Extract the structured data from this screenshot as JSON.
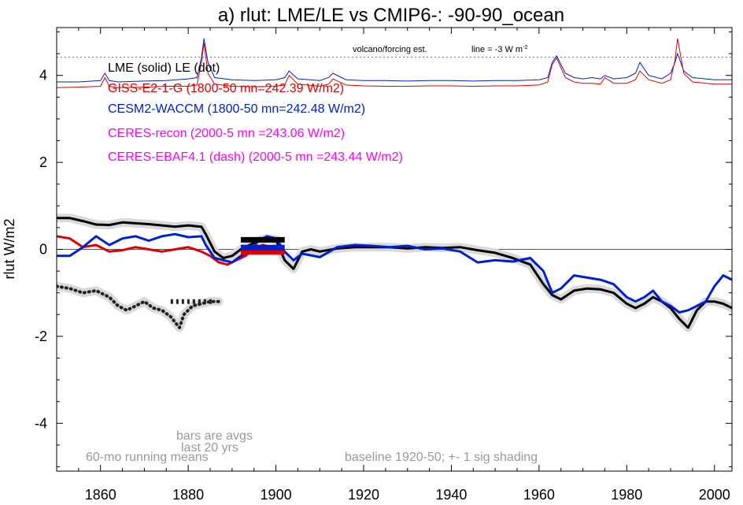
{
  "chart_data": {
    "type": "line",
    "title": "a) rlut: LME/LE vs CMIP6-: -90-90_ocean",
    "ylabel": "rlut W/m2",
    "xlabel": "",
    "xlim": [
      1850,
      2004
    ],
    "ylim": [
      -5.1,
      5.1
    ],
    "x_ticks": [
      1860,
      1880,
      1900,
      1920,
      1940,
      1960,
      1980,
      2000
    ],
    "y_ticks": [
      -4,
      -2,
      0,
      2,
      4
    ],
    "legend_position": "top-left",
    "zero_line": true,
    "legend": [
      {
        "label": "LME (solid)   LE (dot)",
        "color": "#000000"
      },
      {
        "label": "GISS-E2-1-G (1800-50 mn=242.39 W/m2)",
        "color": "#e00000"
      },
      {
        "label": "CESM2-WACCM (1800-50 mn=242.48 W/m2)",
        "color": "#0020d0"
      },
      {
        "label": "CERES-recon (2000-5 mn =243.06 W/m2)",
        "color": "#ff00ff"
      },
      {
        "label": "CERES-EBAF4.1 (dash) (2000-5 mn =243.44 W/m2)",
        "color": "#ff00ff"
      }
    ],
    "annotations": {
      "volcano_label": "volcano/forcing est.",
      "line_label": "line = -3 W m",
      "line_label_sup": "-2",
      "bars_note_1": "bars are avgs",
      "bars_note_2": "last 20 yrs",
      "running_note": "60-mo running means",
      "baseline_note": "baseline 1920-50; +- 1 sig shading"
    },
    "volcano_ref_line": 4.42,
    "series": [
      {
        "name": "LME (solid)",
        "color": "#000000",
        "style": "solid",
        "x": [
          1850,
          1853,
          1856,
          1859,
          1862,
          1865,
          1868,
          1871,
          1874,
          1877,
          1880,
          1883,
          1884,
          1886,
          1888,
          1890,
          1892,
          1894,
          1896,
          1898,
          1900,
          1902,
          1904,
          1906,
          1908,
          1910,
          1914,
          1918,
          1922,
          1926,
          1930,
          1934,
          1938,
          1942,
          1946,
          1950,
          1954,
          1958,
          1961,
          1963,
          1965,
          1968,
          1971,
          1974,
          1977,
          1980,
          1982,
          1984,
          1986,
          1988,
          1990,
          1992,
          1994,
          1996,
          1998,
          2000,
          2002,
          2004
        ],
        "y": [
          0.72,
          0.72,
          0.65,
          0.57,
          0.56,
          0.62,
          0.6,
          0.58,
          0.55,
          0.52,
          0.55,
          0.52,
          0.35,
          -0.05,
          -0.2,
          -0.15,
          0.0,
          0.1,
          0.2,
          0.25,
          0.22,
          -0.25,
          -0.45,
          -0.05,
          0.0,
          -0.05,
          0.02,
          0.05,
          0.05,
          0.05,
          0.02,
          0.05,
          0.03,
          0.05,
          -0.02,
          -0.08,
          -0.2,
          -0.35,
          -0.8,
          -1.05,
          -1.15,
          -0.95,
          -0.9,
          -0.92,
          -1.0,
          -1.25,
          -1.35,
          -1.25,
          -1.1,
          -1.2,
          -1.35,
          -1.6,
          -1.8,
          -1.4,
          -1.2,
          -1.2,
          -1.25,
          -1.35
        ]
      },
      {
        "name": "GISS-E2-1-G",
        "color": "#e00000",
        "style": "solid",
        "x": [
          1850,
          1853,
          1856,
          1859,
          1862,
          1865,
          1868,
          1871,
          1874,
          1877,
          1880,
          1883,
          1885,
          1887,
          1889,
          1891,
          1893,
          1895,
          1897,
          1899,
          1901
        ],
        "y": [
          0.3,
          0.25,
          0.05,
          0.1,
          -0.05,
          -0.02,
          0.05,
          0.0,
          -0.05,
          0.0,
          0.05,
          -0.05,
          -0.15,
          -0.3,
          -0.35,
          -0.25,
          -0.15,
          0.0,
          0.1,
          0.05,
          0.02
        ]
      },
      {
        "name": "CESM2-WACCM",
        "color": "#0020d0",
        "style": "solid",
        "x": [
          1850,
          1853,
          1856,
          1859,
          1862,
          1865,
          1868,
          1871,
          1874,
          1877,
          1880,
          1883,
          1884,
          1886,
          1888,
          1890,
          1892,
          1894,
          1896,
          1898,
          1900,
          1902,
          1904,
          1906,
          1910,
          1914,
          1918,
          1922,
          1926,
          1930,
          1934,
          1938,
          1942,
          1946,
          1950,
          1954,
          1958,
          1961,
          1963,
          1965,
          1968,
          1971,
          1974,
          1977,
          1980,
          1982,
          1984,
          1986,
          1988,
          1990,
          1992,
          1994,
          1996,
          1998,
          2000,
          2002,
          2004
        ],
        "y": [
          -0.15,
          -0.15,
          0.05,
          0.3,
          0.1,
          0.25,
          0.3,
          0.2,
          0.3,
          0.35,
          0.28,
          0.3,
          0.1,
          -0.2,
          -0.25,
          -0.3,
          -0.15,
          -0.05,
          0.2,
          0.3,
          0.25,
          -0.05,
          -0.25,
          -0.1,
          -0.18,
          0.05,
          0.1,
          0.08,
          0.05,
          0.08,
          0.0,
          0.02,
          -0.05,
          -0.3,
          -0.25,
          -0.28,
          -0.2,
          -0.5,
          -1.0,
          -0.9,
          -0.6,
          -0.65,
          -0.7,
          -0.8,
          -1.1,
          -1.2,
          -1.1,
          -0.95,
          -1.2,
          -1.3,
          -1.45,
          -1.4,
          -1.3,
          -1.2,
          -0.85,
          -0.6,
          -0.7
        ]
      },
      {
        "name": "LE (dot)",
        "color": "#222222",
        "style": "dot",
        "x": [
          1850,
          1853,
          1856,
          1859,
          1862,
          1864,
          1866,
          1868,
          1870,
          1872,
          1874,
          1876,
          1878,
          1879,
          1881,
          1883,
          1885,
          1887
        ],
        "y": [
          -0.85,
          -0.9,
          -1.0,
          -0.95,
          -1.1,
          -1.3,
          -1.4,
          -1.3,
          -1.2,
          -1.35,
          -1.4,
          -1.55,
          -1.8,
          -1.5,
          -1.3,
          -1.25,
          -1.2,
          -1.2
        ]
      }
    ],
    "volcano_forcing": [
      {
        "name": "CESM2-WACCM forcing",
        "color": "#0020d0",
        "x": [
          1850,
          1855,
          1860,
          1861,
          1862,
          1864,
          1870,
          1875,
          1880,
          1882,
          1883,
          1883.6,
          1884.5,
          1886,
          1890,
          1895,
          1900,
          1902,
          1903,
          1905,
          1910,
          1912,
          1913,
          1916,
          1920,
          1925,
          1930,
          1935,
          1940,
          1945,
          1950,
          1955,
          1960,
          1962,
          1963,
          1964,
          1966,
          1968,
          1970,
          1972,
          1974,
          1975,
          1977,
          1980,
          1982,
          1983,
          1985,
          1988,
          1990,
          1991,
          1991.6,
          1993,
          1995,
          1998,
          2000,
          2004
        ],
        "y": [
          3.85,
          3.85,
          3.88,
          4.05,
          3.88,
          3.85,
          3.87,
          3.88,
          3.92,
          3.95,
          4.4,
          4.85,
          4.3,
          3.95,
          3.9,
          3.88,
          3.9,
          3.95,
          4.1,
          3.92,
          3.88,
          3.95,
          4.05,
          3.9,
          3.88,
          3.88,
          3.87,
          3.88,
          3.88,
          3.87,
          3.88,
          3.88,
          3.9,
          3.95,
          4.3,
          4.45,
          4.05,
          3.95,
          3.92,
          3.95,
          3.92,
          4.0,
          3.92,
          3.95,
          4.05,
          4.3,
          4.0,
          3.92,
          4.05,
          4.3,
          4.5,
          4.1,
          3.95,
          3.92,
          3.9,
          3.9
        ]
      },
      {
        "name": "GISS-E2-1-G forcing",
        "color": "#e00000",
        "x": [
          1850,
          1855,
          1860,
          1861,
          1862,
          1864,
          1870,
          1875,
          1880,
          1882,
          1883,
          1883.6,
          1884.5,
          1886,
          1890,
          1895,
          1900,
          1902,
          1903,
          1905,
          1910,
          1912,
          1913,
          1916,
          1920,
          1925,
          1930,
          1935,
          1940,
          1945,
          1950,
          1955,
          1960,
          1962,
          1963,
          1964,
          1966,
          1968,
          1970,
          1972,
          1974,
          1975,
          1977,
          1980,
          1982,
          1983,
          1985,
          1988,
          1990,
          1991,
          1991.6,
          1993,
          1995,
          1998,
          2000,
          2004
        ],
        "y": [
          3.72,
          3.73,
          3.75,
          3.95,
          3.75,
          3.72,
          3.73,
          3.75,
          3.75,
          3.78,
          4.3,
          4.75,
          4.05,
          3.8,
          3.75,
          3.74,
          3.75,
          3.78,
          4.0,
          3.8,
          3.75,
          3.8,
          3.92,
          3.78,
          3.76,
          3.75,
          3.75,
          3.76,
          3.76,
          3.75,
          3.76,
          3.76,
          3.78,
          3.85,
          4.25,
          4.4,
          3.95,
          3.85,
          3.82,
          3.82,
          3.8,
          3.95,
          3.82,
          3.82,
          3.9,
          4.1,
          3.9,
          3.82,
          3.9,
          4.35,
          4.85,
          4.05,
          3.85,
          3.82,
          3.8,
          3.8
        ]
      }
    ],
    "bars": [
      {
        "series": "LME (solid)",
        "color": "#000000",
        "x0": 1892,
        "x1": 1902,
        "y": 0.22
      },
      {
        "series": "GISS-E2-1-G",
        "color": "#e00000",
        "x0": 1892,
        "x1": 1902,
        "y": -0.06
      },
      {
        "series": "CESM2-WACCM",
        "color": "#0020d0",
        "x0": 1892,
        "x1": 1902,
        "y": 0.04
      },
      {
        "series": "LE (dot)",
        "color": "#222222",
        "x0": 1876,
        "x1": 1886,
        "y": -1.2
      }
    ]
  }
}
